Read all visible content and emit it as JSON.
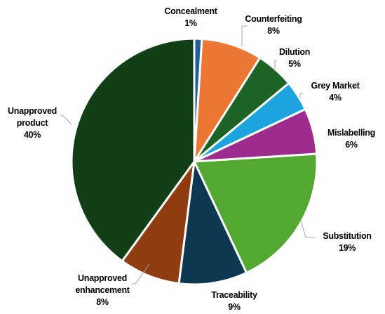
{
  "chart_data": {
    "type": "pie",
    "title": "",
    "slices": [
      {
        "name": "Concealment",
        "name_lines": [
          "Concealment"
        ],
        "value": 1,
        "percent_label": "1%",
        "color": "#1f5f9e"
      },
      {
        "name": "Counterfeiting",
        "name_lines": [
          "Counterfeiting"
        ],
        "value": 8,
        "percent_label": "8%",
        "color": "#ec7634"
      },
      {
        "name": "Dilution",
        "name_lines": [
          "Dilution"
        ],
        "value": 5,
        "percent_label": "5%",
        "color": "#1d6325"
      },
      {
        "name": "Grey Market",
        "name_lines": [
          "Grey Market"
        ],
        "value": 4,
        "percent_label": "4%",
        "color": "#1ca4de"
      },
      {
        "name": "Mislabelling",
        "name_lines": [
          "Mislabelling"
        ],
        "value": 6,
        "percent_label": "6%",
        "color": "#9e2c8f"
      },
      {
        "name": "Substitution",
        "name_lines": [
          "Substitution"
        ],
        "value": 19,
        "percent_label": "19%",
        "color": "#52a830"
      },
      {
        "name": "Traceability",
        "name_lines": [
          "Traceability"
        ],
        "value": 9,
        "percent_label": "9%",
        "color": "#0d3852"
      },
      {
        "name": "Unapproved enhancement",
        "name_lines": [
          "Unapproved",
          "enhancement"
        ],
        "value": 8,
        "percent_label": "8%",
        "color": "#8e3c10"
      },
      {
        "name": "Unapproved product",
        "name_lines": [
          "Unapproved",
          "product"
        ],
        "value": 40,
        "percent_label": "40%",
        "color": "#123f17"
      }
    ],
    "start_angle_deg": 0,
    "direction": "clockwise",
    "legend": "none",
    "data_labels": "outside-with-leader-lines"
  }
}
